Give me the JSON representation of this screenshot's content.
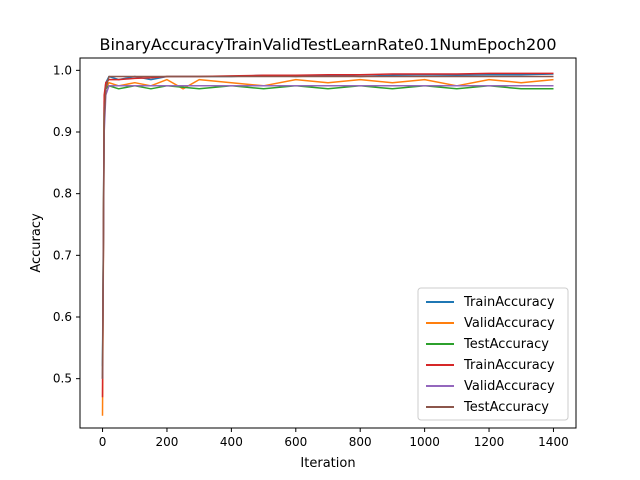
{
  "chart_data": {
    "type": "line",
    "title": "BinaryAccuracyTrainValidTestLearnRate0.1NumEpoch200",
    "xlabel": "Iteration",
    "ylabel": "Accuracy",
    "xlim": [
      -70,
      1470
    ],
    "ylim": [
      0.42,
      1.02
    ],
    "xticks": [
      0,
      200,
      400,
      600,
      800,
      1000,
      1200,
      1400
    ],
    "yticks": [
      0.5,
      0.6,
      0.7,
      0.8,
      0.9,
      1.0
    ],
    "xtick_labels": [
      "0",
      "200",
      "400",
      "600",
      "800",
      "1000",
      "1200",
      "1400"
    ],
    "ytick_labels": [
      "0.5",
      "0.6",
      "0.7",
      "0.8",
      "0.9",
      "1.0"
    ],
    "grid": false,
    "legend_position": "lower-right",
    "series": [
      {
        "name": "TrainAccuracy",
        "color": "#1f77b4",
        "x": [
          0,
          5,
          10,
          20,
          50,
          100,
          150,
          200,
          300,
          400,
          500,
          600,
          700,
          800,
          900,
          1000,
          1100,
          1200,
          1300,
          1400
        ],
        "y": [
          0.52,
          0.95,
          0.98,
          0.99,
          0.985,
          0.99,
          0.985,
          0.99,
          0.99,
          0.99,
          0.992,
          0.99,
          0.992,
          0.99,
          0.992,
          0.993,
          0.992,
          0.993,
          0.993,
          0.994
        ]
      },
      {
        "name": "ValidAccuracy",
        "color": "#ff7f0e",
        "x": [
          0,
          5,
          10,
          20,
          50,
          100,
          150,
          200,
          250,
          300,
          400,
          500,
          600,
          700,
          800,
          900,
          1000,
          1100,
          1200,
          1300,
          1400
        ],
        "y": [
          0.44,
          0.93,
          0.97,
          0.98,
          0.975,
          0.98,
          0.975,
          0.985,
          0.97,
          0.985,
          0.98,
          0.975,
          0.985,
          0.98,
          0.985,
          0.98,
          0.985,
          0.975,
          0.985,
          0.98,
          0.985
        ]
      },
      {
        "name": "TestAccuracy",
        "color": "#2ca02c",
        "x": [
          0,
          5,
          10,
          20,
          50,
          100,
          150,
          200,
          300,
          400,
          500,
          600,
          700,
          800,
          900,
          1000,
          1100,
          1200,
          1300,
          1400
        ],
        "y": [
          0.5,
          0.94,
          0.97,
          0.975,
          0.97,
          0.975,
          0.97,
          0.975,
          0.97,
          0.975,
          0.97,
          0.975,
          0.97,
          0.975,
          0.97,
          0.975,
          0.97,
          0.975,
          0.97,
          0.97
        ]
      },
      {
        "name": "TrainAccuracy",
        "color": "#d62728",
        "x": [
          0,
          5,
          10,
          20,
          50,
          100,
          150,
          200,
          300,
          400,
          500,
          600,
          700,
          800,
          900,
          1000,
          1100,
          1200,
          1300,
          1400
        ],
        "y": [
          0.47,
          0.96,
          0.98,
          0.985,
          0.985,
          0.987,
          0.988,
          0.99,
          0.99,
          0.991,
          0.992,
          0.992,
          0.993,
          0.993,
          0.994,
          0.994,
          0.994,
          0.995,
          0.995,
          0.995
        ]
      },
      {
        "name": "ValidAccuracy",
        "color": "#9467bd",
        "x": [
          0,
          5,
          10,
          20,
          50,
          100,
          150,
          200,
          300,
          400,
          500,
          600,
          700,
          800,
          900,
          1000,
          1100,
          1200,
          1300,
          1400
        ],
        "y": [
          0.5,
          0.9,
          0.96,
          0.975,
          0.975,
          0.975,
          0.975,
          0.975,
          0.975,
          0.975,
          0.975,
          0.975,
          0.975,
          0.975,
          0.975,
          0.975,
          0.975,
          0.975,
          0.975,
          0.975
        ]
      },
      {
        "name": "TestAccuracy",
        "color": "#8c564b",
        "x": [
          0,
          5,
          10,
          20,
          50,
          100,
          150,
          200,
          300,
          400,
          500,
          600,
          700,
          800,
          900,
          1000,
          1100,
          1200,
          1300,
          1400
        ],
        "y": [
          0.5,
          0.92,
          0.97,
          0.99,
          0.99,
          0.99,
          0.99,
          0.99,
          0.99,
          0.99,
          0.99,
          0.99,
          0.99,
          0.99,
          0.99,
          0.99,
          0.99,
          0.99,
          0.99,
          0.99
        ]
      }
    ]
  }
}
